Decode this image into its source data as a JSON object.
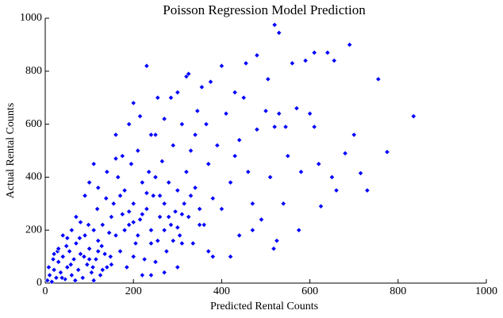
{
  "chart_data": {
    "type": "scatter",
    "title": "Poisson Regression Model Prediction",
    "x_label": "Predicted Rental Counts",
    "y_label": "Actual Rental Counts",
    "xlim": [
      0,
      1000
    ],
    "ylim": [
      0,
      1000
    ],
    "xticks": [
      0,
      200,
      400,
      600,
      800,
      1000
    ],
    "yticks": [
      0,
      200,
      400,
      600,
      800,
      1000
    ],
    "grid": false,
    "color": "#0000ff",
    "x": [
      5,
      10,
      15,
      20,
      25,
      30,
      35,
      40,
      45,
      50,
      55,
      60,
      65,
      70,
      75,
      80,
      85,
      90,
      95,
      100,
      105,
      110,
      115,
      120,
      125,
      130,
      135,
      140,
      145,
      150,
      8,
      18,
      28,
      38,
      48,
      58,
      68,
      78,
      88,
      98,
      108,
      118,
      128,
      138,
      148,
      155,
      160,
      165,
      170,
      175,
      180,
      185,
      190,
      195,
      200,
      205,
      210,
      215,
      220,
      225,
      230,
      235,
      240,
      245,
      250,
      255,
      260,
      265,
      270,
      275,
      280,
      285,
      290,
      295,
      300,
      305,
      310,
      315,
      320,
      325,
      330,
      335,
      340,
      345,
      350,
      160,
      175,
      190,
      200,
      215,
      230,
      240,
      255,
      270,
      285,
      300,
      320,
      325,
      340,
      355,
      365,
      375,
      360,
      370,
      380,
      390,
      400,
      410,
      420,
      430,
      440,
      450,
      460,
      470,
      480,
      490,
      500,
      510,
      520,
      530,
      540,
      550,
      560,
      575,
      590,
      600,
      610,
      620,
      640,
      655,
      660,
      680,
      690,
      700,
      715,
      730,
      755,
      775,
      835,
      520,
      530,
      518,
      525,
      455,
      480,
      380,
      420,
      370,
      470,
      440,
      545,
      505,
      610,
      580,
      625,
      650,
      570,
      400,
      430,
      180,
      200,
      220,
      240,
      260,
      280,
      300,
      200,
      250,
      150,
      130,
      110,
      100,
      120,
      170,
      190,
      210,
      230,
      250,
      270,
      290,
      310,
      330,
      350,
      120,
      140,
      160,
      110,
      100,
      90,
      70,
      60,
      50,
      30,
      20,
      40,
      80,
      300,
      310,
      270,
      240,
      220
    ],
    "values": [
      10,
      30,
      5,
      50,
      20,
      80,
      40,
      100,
      15,
      60,
      120,
      30,
      90,
      150,
      50,
      110,
      20,
      180,
      70,
      130,
      40,
      200,
      90,
      160,
      30,
      220,
      110,
      60,
      190,
      250,
      60,
      90,
      120,
      20,
      140,
      70,
      10,
      170,
      100,
      220,
      60,
      280,
      140,
      320,
      100,
      300,
      180,
      400,
      120,
      260,
      350,
      60,
      220,
      450,
      300,
      150,
      500,
      240,
      380,
      90,
      280,
      420,
      200,
      330,
      560,
      160,
      250,
      460,
      300,
      120,
      380,
      220,
      520,
      270,
      350,
      180,
      600,
      300,
      420,
      250,
      500,
      150,
      360,
      650,
      280,
      560,
      480,
      600,
      680,
      630,
      820,
      560,
      700,
      620,
      700,
      720,
      780,
      790,
      560,
      740,
      600,
      760,
      220,
      450,
      320,
      520,
      280,
      640,
      380,
      480,
      180,
      700,
      420,
      300,
      580,
      240,
      650,
      400,
      590,
      640,
      300,
      480,
      830,
      200,
      840,
      640,
      590,
      450,
      870,
      840,
      350,
      490,
      900,
      560,
      415,
      350,
      770,
      495,
      630,
      975,
      945,
      130,
      160,
      830,
      860,
      100,
      100,
      120,
      200,
      540,
      590,
      770,
      870,
      420,
      290,
      400,
      660,
      820,
      720,
      200,
      230,
      260,
      150,
      330,
      250,
      210,
      100,
      80,
      70,
      50,
      10,
      90,
      120,
      330,
      270,
      180,
      340,
      400,
      200,
      160,
      260,
      330,
      220,
      360,
      420,
      470,
      450,
      380,
      330,
      250,
      200,
      170,
      130,
      110,
      180,
      230,
      60,
      150,
      40,
      30,
      30
    ]
  }
}
